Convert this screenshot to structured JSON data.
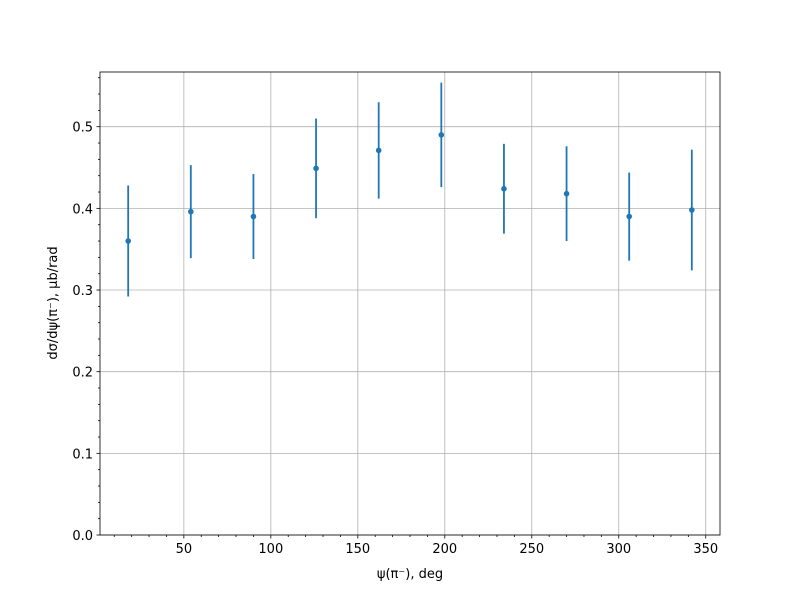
{
  "chart_data": {
    "type": "errorbar",
    "xlabel": "ψ(π⁻), deg",
    "ylabel": "dσ/dψ(π⁻), μb/rad",
    "x": [
      18,
      54,
      90,
      126,
      162,
      198,
      234,
      270,
      306,
      342
    ],
    "values": [
      0.36,
      0.396,
      0.39,
      0.449,
      0.471,
      0.49,
      0.424,
      0.418,
      0.39,
      0.398
    ],
    "errors": [
      0.068,
      0.057,
      0.052,
      0.061,
      0.059,
      0.064,
      0.055,
      0.058,
      0.054,
      0.074
    ],
    "color": "#1f77b4",
    "xlim": [
      1.8,
      358.2
    ],
    "ylim": [
      0,
      0.567
    ],
    "xticks": [
      50,
      100,
      150,
      200,
      250,
      300,
      350
    ],
    "yticks": [
      {
        "value": 0,
        "label": "0.0"
      },
      0.1,
      0.2,
      0.3,
      0.4,
      0.5
    ],
    "grid": true,
    "minor_ticks": true
  }
}
